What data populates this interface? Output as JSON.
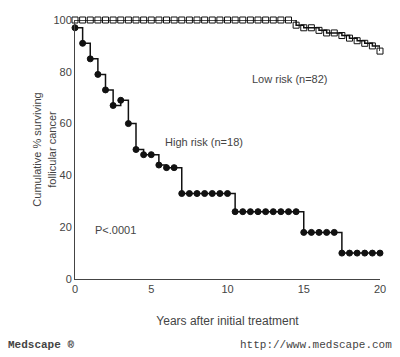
{
  "chart_data": {
    "type": "line",
    "line_style": "step",
    "xlabel": "Years after initial treatment",
    "ylabel": "Cumulative % surviving\nfollicular cancer",
    "xlim": [
      0,
      20
    ],
    "ylim": [
      0,
      100
    ],
    "xticks": [
      0,
      5,
      10,
      15,
      20
    ],
    "yticks": [
      0,
      20,
      40,
      60,
      80,
      100
    ],
    "grid": false,
    "x": [
      0,
      0.5,
      1,
      1.5,
      2,
      2.5,
      3,
      3.5,
      4,
      4.5,
      5,
      5.5,
      6,
      6.5,
      7,
      7.5,
      8,
      8.5,
      9,
      9.5,
      10,
      10.5,
      11,
      11.5,
      12,
      12.5,
      13,
      13.5,
      14,
      14.5,
      15,
      15.5,
      16,
      16.5,
      17,
      17.5,
      18,
      18.5,
      19,
      19.5,
      20
    ],
    "series": [
      {
        "color": "#111111",
        "marker": "square-open",
        "values": [
          100,
          100,
          100,
          100,
          100,
          100,
          100,
          100,
          100,
          100,
          100,
          100,
          100,
          100,
          100,
          100,
          100,
          100,
          100,
          100,
          100,
          100,
          100,
          100,
          100,
          100,
          100,
          100,
          100,
          98,
          97,
          97,
          96,
          95,
          95,
          94,
          93,
          92,
          91,
          90,
          88
        ]
      },
      {
        "color": "#111111",
        "marker": "circle",
        "values": [
          97,
          91,
          85,
          79,
          73,
          67,
          69,
          60,
          50,
          48,
          48,
          44,
          43,
          43,
          33,
          33,
          33,
          33,
          33,
          33,
          33,
          26,
          26,
          26,
          26,
          26,
          26,
          26,
          26,
          26,
          18,
          18,
          18,
          18,
          18,
          10,
          10,
          10,
          10,
          10,
          10
        ]
      }
    ],
    "annotations": [
      {
        "text": "Low risk (n=82)",
        "x": 11.5,
        "y": 74
      },
      {
        "text": "High risk (n=18)",
        "x": 5.8,
        "y": 50
      },
      {
        "text": "P<.0001",
        "x": 1.2,
        "y": 16
      }
    ],
    "footer": {
      "left": "Medscape ®",
      "right": "http://www.medscape.com"
    }
  }
}
